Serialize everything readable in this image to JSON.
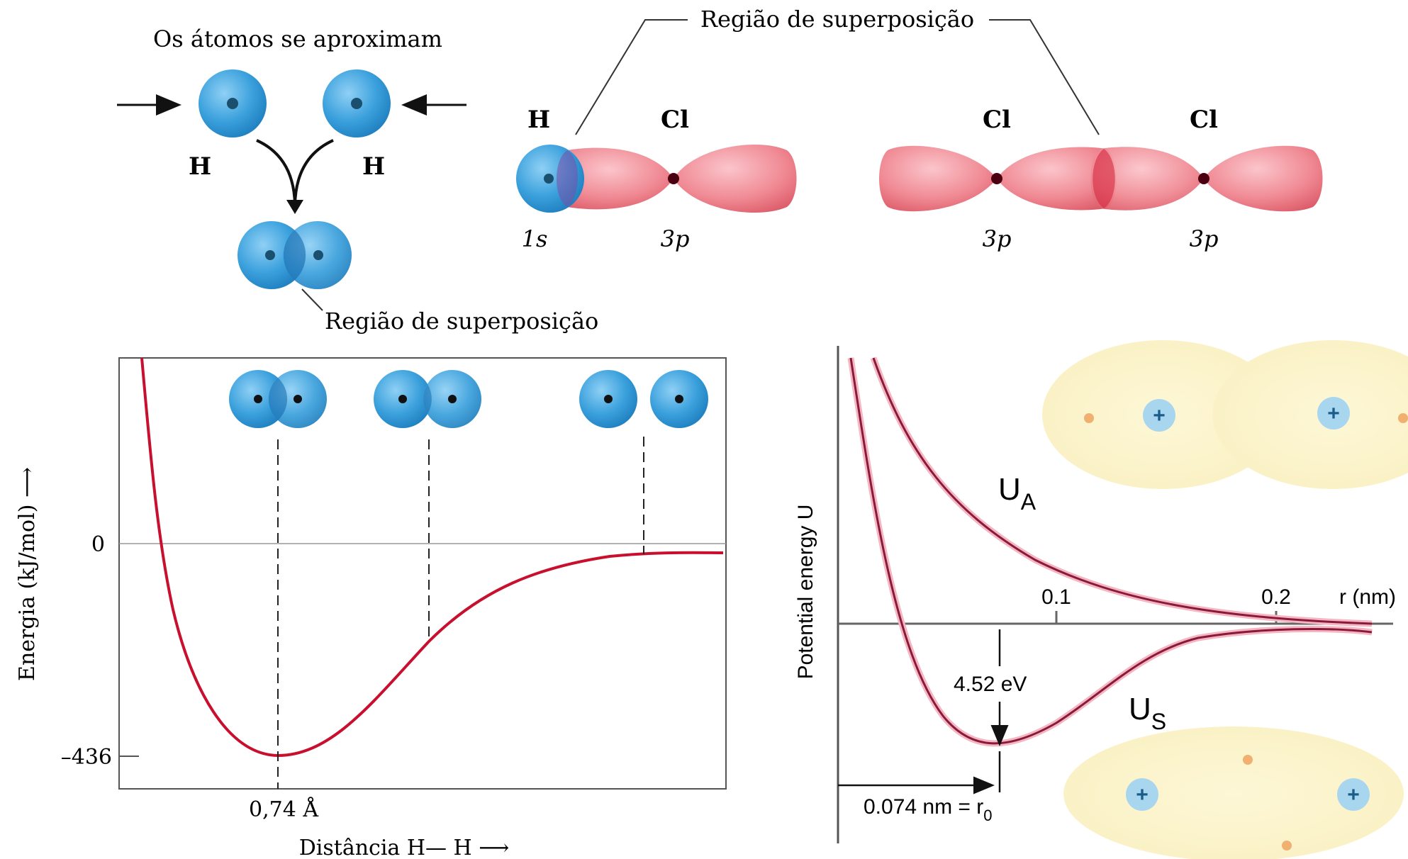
{
  "top_left": {
    "title": "Os átomos se aproximam",
    "atom_left": "H",
    "atom_right": "H",
    "overlap_label": "Região de superposição"
  },
  "top_right": {
    "overlap_label": "Região de superposição",
    "hcl": {
      "atom1": "H",
      "atom2": "Cl",
      "orbital1": "1s",
      "orbital2": "3p"
    },
    "cl2": {
      "atom1": "Cl",
      "atom2": "Cl",
      "orbital1": "3p",
      "orbital2": "3p"
    }
  },
  "colors": {
    "orbital_s": "#3aa0dc",
    "orbital_p": "#f08a94",
    "curve": "#c8102e",
    "curve2": "#8b1a3a"
  },
  "chart_data": [
    {
      "type": "line",
      "ylabel": "Energia (kJ/mol) ⟶",
      "xlabel": "Distância H— H ⟶",
      "y_ticks": [
        "0",
        "–436"
      ],
      "x_ticks": [
        "0,74 Å"
      ],
      "series": [
        {
          "x": [
            0.3,
            0.4,
            0.55,
            0.74,
            0.95,
            1.2,
            1.6,
            2.1,
            2.7,
            3.2
          ],
          "y": [
            800,
            220,
            -300,
            -436,
            -390,
            -250,
            -110,
            -40,
            -12,
            -10
          ]
        }
      ]
    },
    {
      "type": "line",
      "ylabel": "Potential energy U",
      "xlabel": "r (nm)",
      "x_ticks": [
        "0.1",
        "0.2"
      ],
      "annotations": [
        "4.52 eV",
        "0.074 nm = r",
        "0"
      ],
      "series": [
        {
          "name": "U_A",
          "label_main": "U",
          "label_sub": "A"
        },
        {
          "name": "U_S",
          "label_main": "U",
          "label_sub": "S"
        }
      ]
    }
  ]
}
